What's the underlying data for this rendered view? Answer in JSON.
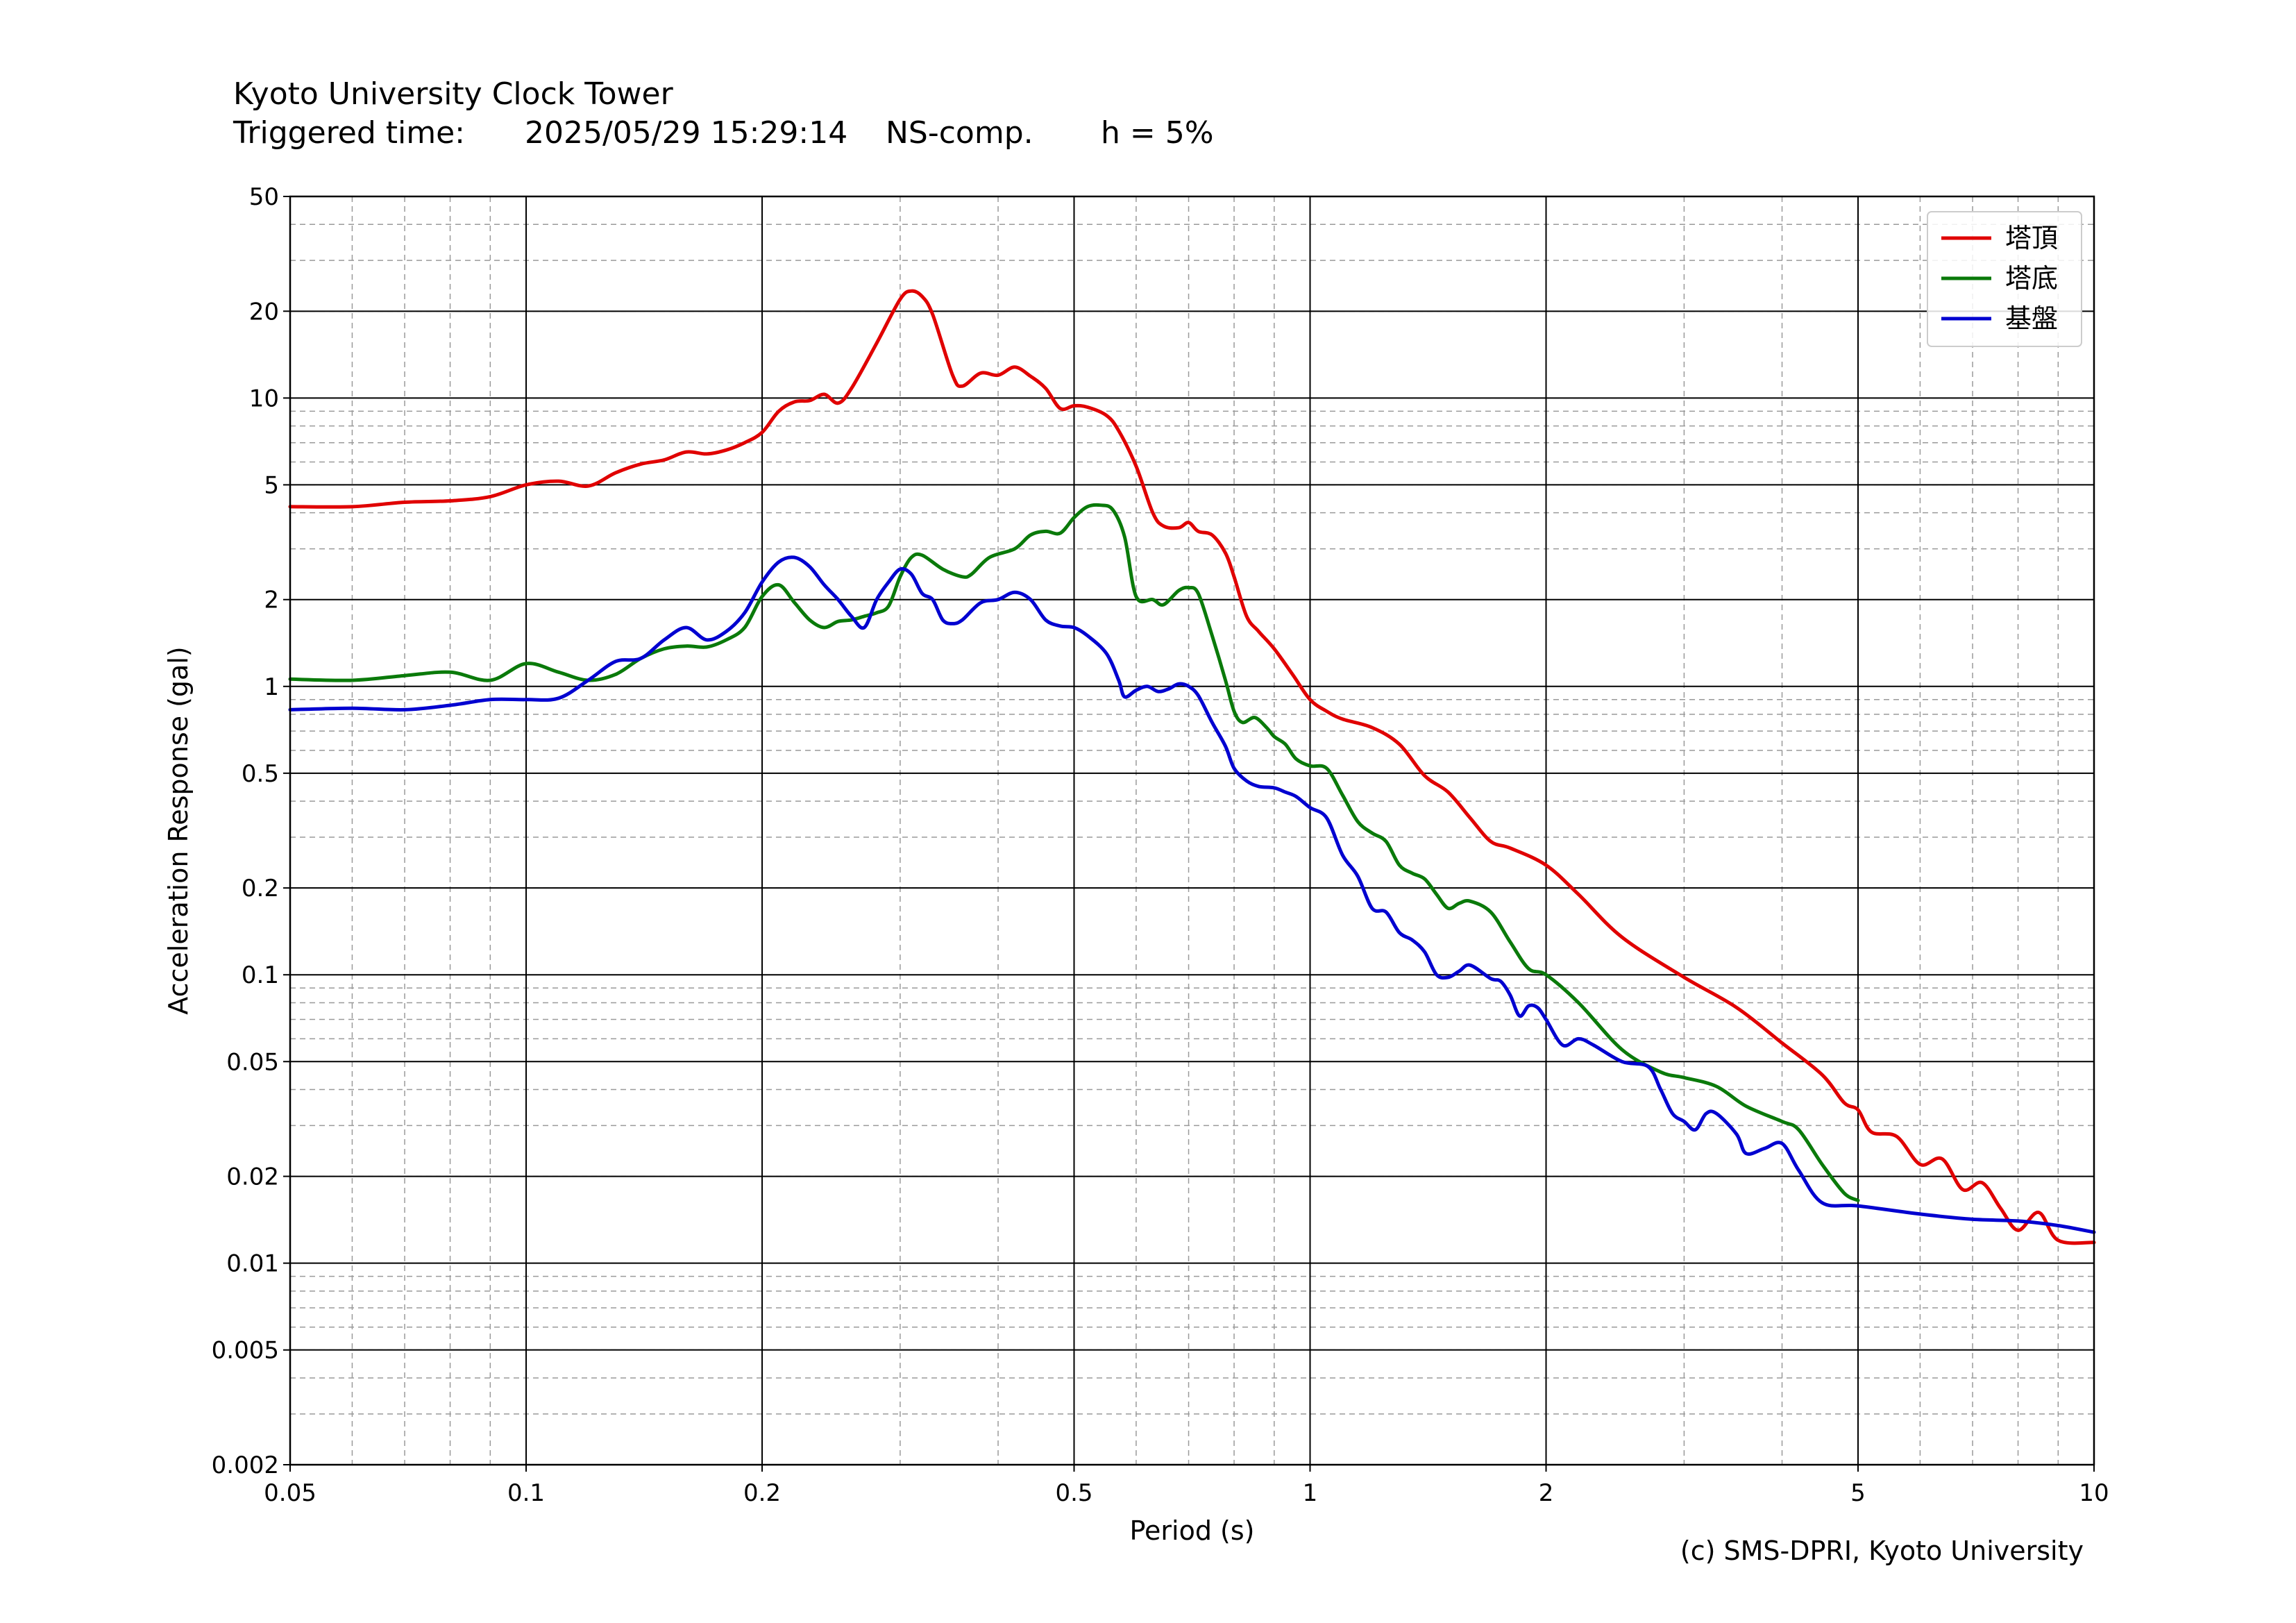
{
  "header": {
    "title": "Kyoto University Clock Tower",
    "triggered_label": "Triggered time:",
    "triggered_time": "2025/05/29 15:29:14",
    "component": "NS-comp.",
    "damping": "h = 5%"
  },
  "credit": "(c) SMS-DPRI, Kyoto University",
  "chart_data": {
    "type": "line",
    "title": "Kyoto University Clock Tower",
    "xlabel": "Period (s)",
    "ylabel": "Acceleration Response (gal)",
    "xscale": "log",
    "yscale": "log",
    "xlim": [
      0.05,
      10
    ],
    "ylim": [
      0.002,
      50
    ],
    "xticks": [
      0.05,
      0.1,
      0.2,
      0.5,
      1,
      2,
      5,
      10
    ],
    "xtick_labels": [
      "0.05",
      "0.1",
      "0.2",
      "0.5",
      "1",
      "2",
      "5",
      "10"
    ],
    "yticks": [
      0.002,
      0.005,
      0.01,
      0.02,
      0.05,
      0.1,
      0.2,
      0.5,
      1,
      2,
      5,
      10,
      20,
      50
    ],
    "ytick_labels": [
      "0.002",
      "0.005",
      "0.01",
      "0.02",
      "0.05",
      "0.1",
      "0.2",
      "0.5",
      "1",
      "2",
      "5",
      "10",
      "20",
      "50"
    ],
    "grid": true,
    "legend_position": "top-right",
    "series": [
      {
        "name": "塔頂",
        "color": "#e00000",
        "points": [
          [
            0.05,
            4.2
          ],
          [
            0.06,
            4.2
          ],
          [
            0.07,
            4.35
          ],
          [
            0.08,
            4.4
          ],
          [
            0.09,
            4.55
          ],
          [
            0.1,
            5.0
          ],
          [
            0.11,
            5.15
          ],
          [
            0.12,
            4.95
          ],
          [
            0.13,
            5.5
          ],
          [
            0.14,
            5.9
          ],
          [
            0.15,
            6.1
          ],
          [
            0.16,
            6.5
          ],
          [
            0.17,
            6.4
          ],
          [
            0.18,
            6.6
          ],
          [
            0.19,
            7.0
          ],
          [
            0.2,
            7.6
          ],
          [
            0.21,
            9.0
          ],
          [
            0.22,
            9.7
          ],
          [
            0.23,
            9.8
          ],
          [
            0.24,
            10.3
          ],
          [
            0.25,
            9.6
          ],
          [
            0.26,
            10.8
          ],
          [
            0.28,
            15.5
          ],
          [
            0.3,
            22.0
          ],
          [
            0.31,
            23.5
          ],
          [
            0.32,
            22.5
          ],
          [
            0.33,
            19.5
          ],
          [
            0.35,
            12.0
          ],
          [
            0.36,
            11.0
          ],
          [
            0.38,
            12.2
          ],
          [
            0.4,
            12.0
          ],
          [
            0.42,
            12.8
          ],
          [
            0.44,
            11.9
          ],
          [
            0.46,
            10.8
          ],
          [
            0.48,
            9.2
          ],
          [
            0.5,
            9.4
          ],
          [
            0.52,
            9.3
          ],
          [
            0.55,
            8.7
          ],
          [
            0.57,
            7.7
          ],
          [
            0.6,
            5.8
          ],
          [
            0.63,
            4.0
          ],
          [
            0.65,
            3.6
          ],
          [
            0.68,
            3.55
          ],
          [
            0.7,
            3.7
          ],
          [
            0.72,
            3.45
          ],
          [
            0.75,
            3.35
          ],
          [
            0.78,
            2.9
          ],
          [
            0.8,
            2.4
          ],
          [
            0.83,
            1.75
          ],
          [
            0.86,
            1.55
          ],
          [
            0.9,
            1.35
          ],
          [
            0.95,
            1.1
          ],
          [
            1.0,
            0.9
          ],
          [
            1.05,
            0.82
          ],
          [
            1.1,
            0.77
          ],
          [
            1.2,
            0.72
          ],
          [
            1.3,
            0.63
          ],
          [
            1.4,
            0.49
          ],
          [
            1.5,
            0.43
          ],
          [
            1.6,
            0.35
          ],
          [
            1.7,
            0.29
          ],
          [
            1.8,
            0.275
          ],
          [
            2.0,
            0.24
          ],
          [
            2.2,
            0.19
          ],
          [
            2.5,
            0.135
          ],
          [
            3.0,
            0.098
          ],
          [
            3.5,
            0.077
          ],
          [
            4.0,
            0.058
          ],
          [
            4.5,
            0.045
          ],
          [
            4.8,
            0.036
          ],
          [
            5.0,
            0.034
          ],
          [
            5.2,
            0.0285
          ],
          [
            5.6,
            0.0275
          ],
          [
            6.0,
            0.022
          ],
          [
            6.4,
            0.023
          ],
          [
            6.8,
            0.018
          ],
          [
            7.2,
            0.019
          ],
          [
            7.6,
            0.0155
          ],
          [
            8.0,
            0.013
          ],
          [
            8.5,
            0.015
          ],
          [
            9.0,
            0.012
          ],
          [
            10.0,
            0.0118
          ]
        ]
      },
      {
        "name": "塔底",
        "color": "#0a7a0a",
        "points": [
          [
            0.05,
            1.06
          ],
          [
            0.06,
            1.05
          ],
          [
            0.07,
            1.09
          ],
          [
            0.08,
            1.12
          ],
          [
            0.09,
            1.05
          ],
          [
            0.1,
            1.2
          ],
          [
            0.11,
            1.12
          ],
          [
            0.12,
            1.05
          ],
          [
            0.13,
            1.1
          ],
          [
            0.14,
            1.25
          ],
          [
            0.15,
            1.35
          ],
          [
            0.16,
            1.38
          ],
          [
            0.17,
            1.37
          ],
          [
            0.18,
            1.45
          ],
          [
            0.19,
            1.6
          ],
          [
            0.2,
            2.05
          ],
          [
            0.21,
            2.25
          ],
          [
            0.22,
            1.95
          ],
          [
            0.23,
            1.7
          ],
          [
            0.24,
            1.6
          ],
          [
            0.25,
            1.68
          ],
          [
            0.26,
            1.7
          ],
          [
            0.27,
            1.75
          ],
          [
            0.28,
            1.8
          ],
          [
            0.29,
            1.9
          ],
          [
            0.3,
            2.4
          ],
          [
            0.31,
            2.8
          ],
          [
            0.32,
            2.85
          ],
          [
            0.34,
            2.55
          ],
          [
            0.36,
            2.4
          ],
          [
            0.37,
            2.45
          ],
          [
            0.39,
            2.8
          ],
          [
            0.42,
            3.0
          ],
          [
            0.44,
            3.35
          ],
          [
            0.46,
            3.45
          ],
          [
            0.48,
            3.4
          ],
          [
            0.5,
            3.85
          ],
          [
            0.52,
            4.2
          ],
          [
            0.54,
            4.25
          ],
          [
            0.56,
            4.1
          ],
          [
            0.58,
            3.3
          ],
          [
            0.6,
            2.05
          ],
          [
            0.63,
            2.0
          ],
          [
            0.65,
            1.92
          ],
          [
            0.68,
            2.15
          ],
          [
            0.7,
            2.2
          ],
          [
            0.72,
            2.1
          ],
          [
            0.75,
            1.5
          ],
          [
            0.78,
            1.05
          ],
          [
            0.8,
            0.82
          ],
          [
            0.82,
            0.75
          ],
          [
            0.85,
            0.78
          ],
          [
            0.88,
            0.72
          ],
          [
            0.9,
            0.67
          ],
          [
            0.93,
            0.63
          ],
          [
            0.96,
            0.56
          ],
          [
            1.0,
            0.53
          ],
          [
            1.05,
            0.52
          ],
          [
            1.1,
            0.42
          ],
          [
            1.15,
            0.34
          ],
          [
            1.2,
            0.31
          ],
          [
            1.25,
            0.29
          ],
          [
            1.3,
            0.24
          ],
          [
            1.35,
            0.225
          ],
          [
            1.4,
            0.215
          ],
          [
            1.45,
            0.19
          ],
          [
            1.5,
            0.17
          ],
          [
            1.55,
            0.177
          ],
          [
            1.6,
            0.18
          ],
          [
            1.7,
            0.165
          ],
          [
            1.8,
            0.13
          ],
          [
            1.9,
            0.105
          ],
          [
            2.0,
            0.1
          ],
          [
            2.2,
            0.08
          ],
          [
            2.5,
            0.055
          ],
          [
            2.8,
            0.046
          ],
          [
            3.0,
            0.044
          ],
          [
            3.3,
            0.041
          ],
          [
            3.6,
            0.035
          ],
          [
            4.0,
            0.031
          ],
          [
            4.2,
            0.029
          ],
          [
            4.5,
            0.022
          ],
          [
            4.8,
            0.0175
          ],
          [
            5.0,
            0.0165
          ]
        ]
      },
      {
        "name": "基盤",
        "color": "#0000d0",
        "points": [
          [
            0.05,
            0.83
          ],
          [
            0.06,
            0.84
          ],
          [
            0.07,
            0.83
          ],
          [
            0.08,
            0.86
          ],
          [
            0.09,
            0.9
          ],
          [
            0.1,
            0.9
          ],
          [
            0.11,
            0.91
          ],
          [
            0.12,
            1.05
          ],
          [
            0.13,
            1.22
          ],
          [
            0.14,
            1.25
          ],
          [
            0.15,
            1.45
          ],
          [
            0.16,
            1.6
          ],
          [
            0.17,
            1.45
          ],
          [
            0.18,
            1.55
          ],
          [
            0.19,
            1.8
          ],
          [
            0.2,
            2.3
          ],
          [
            0.21,
            2.7
          ],
          [
            0.22,
            2.8
          ],
          [
            0.23,
            2.6
          ],
          [
            0.24,
            2.25
          ],
          [
            0.25,
            2.0
          ],
          [
            0.26,
            1.75
          ],
          [
            0.27,
            1.6
          ],
          [
            0.28,
            2.0
          ],
          [
            0.29,
            2.3
          ],
          [
            0.3,
            2.55
          ],
          [
            0.31,
            2.45
          ],
          [
            0.32,
            2.1
          ],
          [
            0.33,
            2.0
          ],
          [
            0.34,
            1.7
          ],
          [
            0.35,
            1.65
          ],
          [
            0.36,
            1.7
          ],
          [
            0.38,
            1.95
          ],
          [
            0.4,
            2.0
          ],
          [
            0.42,
            2.12
          ],
          [
            0.44,
            2.0
          ],
          [
            0.46,
            1.7
          ],
          [
            0.48,
            1.62
          ],
          [
            0.5,
            1.6
          ],
          [
            0.52,
            1.5
          ],
          [
            0.55,
            1.3
          ],
          [
            0.57,
            1.05
          ],
          [
            0.58,
            0.92
          ],
          [
            0.6,
            0.97
          ],
          [
            0.62,
            1.0
          ],
          [
            0.64,
            0.96
          ],
          [
            0.66,
            0.98
          ],
          [
            0.68,
            1.02
          ],
          [
            0.7,
            1.0
          ],
          [
            0.72,
            0.93
          ],
          [
            0.75,
            0.75
          ],
          [
            0.78,
            0.62
          ],
          [
            0.8,
            0.52
          ],
          [
            0.83,
            0.47
          ],
          [
            0.86,
            0.45
          ],
          [
            0.9,
            0.445
          ],
          [
            0.93,
            0.43
          ],
          [
            0.96,
            0.415
          ],
          [
            1.0,
            0.38
          ],
          [
            1.05,
            0.35
          ],
          [
            1.1,
            0.26
          ],
          [
            1.15,
            0.22
          ],
          [
            1.2,
            0.17
          ],
          [
            1.25,
            0.165
          ],
          [
            1.3,
            0.14
          ],
          [
            1.35,
            0.132
          ],
          [
            1.4,
            0.12
          ],
          [
            1.45,
            0.1
          ],
          [
            1.5,
            0.098
          ],
          [
            1.55,
            0.103
          ],
          [
            1.6,
            0.108
          ],
          [
            1.7,
            0.097
          ],
          [
            1.75,
            0.095
          ],
          [
            1.8,
            0.085
          ],
          [
            1.85,
            0.072
          ],
          [
            1.9,
            0.078
          ],
          [
            1.95,
            0.077
          ],
          [
            2.0,
            0.07
          ],
          [
            2.1,
            0.057
          ],
          [
            2.2,
            0.06
          ],
          [
            2.3,
            0.057
          ],
          [
            2.5,
            0.05
          ],
          [
            2.7,
            0.048
          ],
          [
            2.8,
            0.04
          ],
          [
            2.9,
            0.033
          ],
          [
            3.0,
            0.031
          ],
          [
            3.1,
            0.029
          ],
          [
            3.2,
            0.033
          ],
          [
            3.3,
            0.033
          ],
          [
            3.5,
            0.028
          ],
          [
            3.6,
            0.024
          ],
          [
            3.8,
            0.025
          ],
          [
            4.0,
            0.026
          ],
          [
            4.2,
            0.021
          ],
          [
            4.5,
            0.0162
          ],
          [
            5.0,
            0.0158
          ],
          [
            6.0,
            0.0148
          ],
          [
            7.0,
            0.0142
          ],
          [
            8.0,
            0.014
          ],
          [
            9.0,
            0.0135
          ],
          [
            10.0,
            0.0128
          ]
        ]
      }
    ]
  }
}
